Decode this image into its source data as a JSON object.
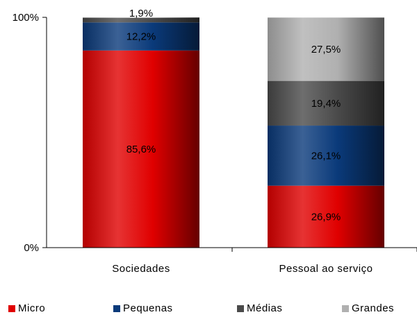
{
  "chart_data": {
    "type": "stacked-bar-100",
    "categories": [
      "Sociedades",
      "Pessoal ao serviço"
    ],
    "series": [
      {
        "name": "Micro",
        "color": "#e00000",
        "values": [
          85.6,
          26.9
        ]
      },
      {
        "name": "Pequenas",
        "color": "#0a3a7a",
        "values": [
          12.2,
          26.1
        ]
      },
      {
        "name": "Médias",
        "color": "#4a4a4a",
        "values": [
          1.9,
          19.4
        ]
      },
      {
        "name": "Grandes",
        "color": "#b0b0b0",
        "values": [
          0.3,
          27.5
        ]
      }
    ],
    "labels": [
      [
        "85,6%",
        "12,2%",
        "1,9%",
        ""
      ],
      [
        "26,9%",
        "26,1%",
        "19,4%",
        "27,5%"
      ]
    ],
    "ylim": [
      0,
      100
    ],
    "yticks": [
      "0%",
      "100%"
    ],
    "legend_position": "bottom"
  }
}
